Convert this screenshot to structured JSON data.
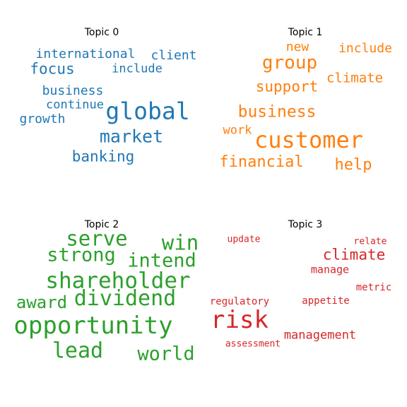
{
  "chart_data": [
    {
      "type": "wordcloud",
      "title": "Topic 0",
      "color": "#1f77b4",
      "words": [
        {
          "text": "international",
          "weight": 0.55
        },
        {
          "text": "client",
          "weight": 0.5
        },
        {
          "text": "focus",
          "weight": 0.6
        },
        {
          "text": "include",
          "weight": 0.48
        },
        {
          "text": "business",
          "weight": 0.55
        },
        {
          "text": "continue",
          "weight": 0.5
        },
        {
          "text": "global",
          "weight": 1.0
        },
        {
          "text": "growth",
          "weight": 0.5
        },
        {
          "text": "market",
          "weight": 0.75
        },
        {
          "text": "banking",
          "weight": 0.62
        }
      ]
    },
    {
      "type": "wordcloud",
      "title": "Topic 1",
      "color": "#ff7f0e",
      "words": [
        {
          "text": "new",
          "weight": 0.5
        },
        {
          "text": "include",
          "weight": 0.5
        },
        {
          "text": "group",
          "weight": 0.7
        },
        {
          "text": "climate",
          "weight": 0.55
        },
        {
          "text": "support",
          "weight": 0.6
        },
        {
          "text": "business",
          "weight": 0.65
        },
        {
          "text": "work",
          "weight": 0.45
        },
        {
          "text": "customer",
          "weight": 1.0
        },
        {
          "text": "financial",
          "weight": 0.62
        },
        {
          "text": "help",
          "weight": 0.6
        }
      ]
    },
    {
      "type": "wordcloud",
      "title": "Topic 2",
      "color": "#2ca02c",
      "words": [
        {
          "text": "serve",
          "weight": 0.85
        },
        {
          "text": "win",
          "weight": 0.8
        },
        {
          "text": "strong",
          "weight": 0.8
        },
        {
          "text": "intend",
          "weight": 0.78
        },
        {
          "text": "shareholder",
          "weight": 0.9
        },
        {
          "text": "award",
          "weight": 0.7
        },
        {
          "text": "dividend",
          "weight": 0.85
        },
        {
          "text": "opportunity",
          "weight": 1.0
        },
        {
          "text": "lead",
          "weight": 0.8
        },
        {
          "text": "world",
          "weight": 0.8
        }
      ]
    },
    {
      "type": "wordcloud",
      "title": "Topic 3",
      "color": "#d62728",
      "words": [
        {
          "text": "update",
          "weight": 0.35
        },
        {
          "text": "relate",
          "weight": 0.35
        },
        {
          "text": "climate",
          "weight": 0.6
        },
        {
          "text": "manage",
          "weight": 0.42
        },
        {
          "text": "metric",
          "weight": 0.4
        },
        {
          "text": "regulatory",
          "weight": 0.42
        },
        {
          "text": "appetite",
          "weight": 0.42
        },
        {
          "text": "risk",
          "weight": 1.0
        },
        {
          "text": "management",
          "weight": 0.5
        },
        {
          "text": "assessment",
          "weight": 0.38
        }
      ]
    }
  ]
}
